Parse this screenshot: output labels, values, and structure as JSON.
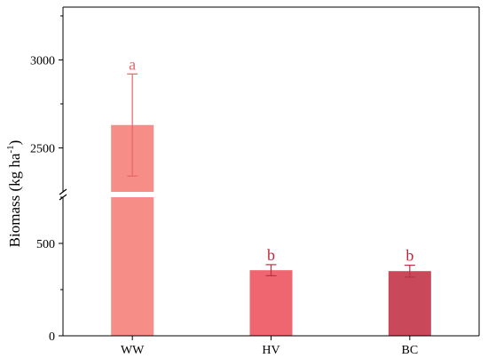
{
  "chart_data": {
    "type": "bar",
    "title": "",
    "xlabel": "",
    "ylabel": {
      "main": "Biomass (kg ha",
      "superscript": "-1",
      "close": ")"
    },
    "categories": [
      "WW",
      "HV",
      "BC"
    ],
    "values": [
      2630,
      355,
      350
    ],
    "errors": [
      290,
      30,
      32
    ],
    "significance_letters": [
      "a",
      "b",
      "b"
    ],
    "colors": [
      "#F68E87",
      "#EF6670",
      "#C9485A"
    ],
    "axis_break": true,
    "y_segments": [
      {
        "range": [
          0,
          750
        ],
        "ticks": [
          500
        ]
      },
      {
        "range": [
          2250,
          3300
        ],
        "ticks": [
          2500,
          3000
        ]
      }
    ],
    "y_zero_label": "0",
    "grid": false,
    "legend": "none"
  }
}
